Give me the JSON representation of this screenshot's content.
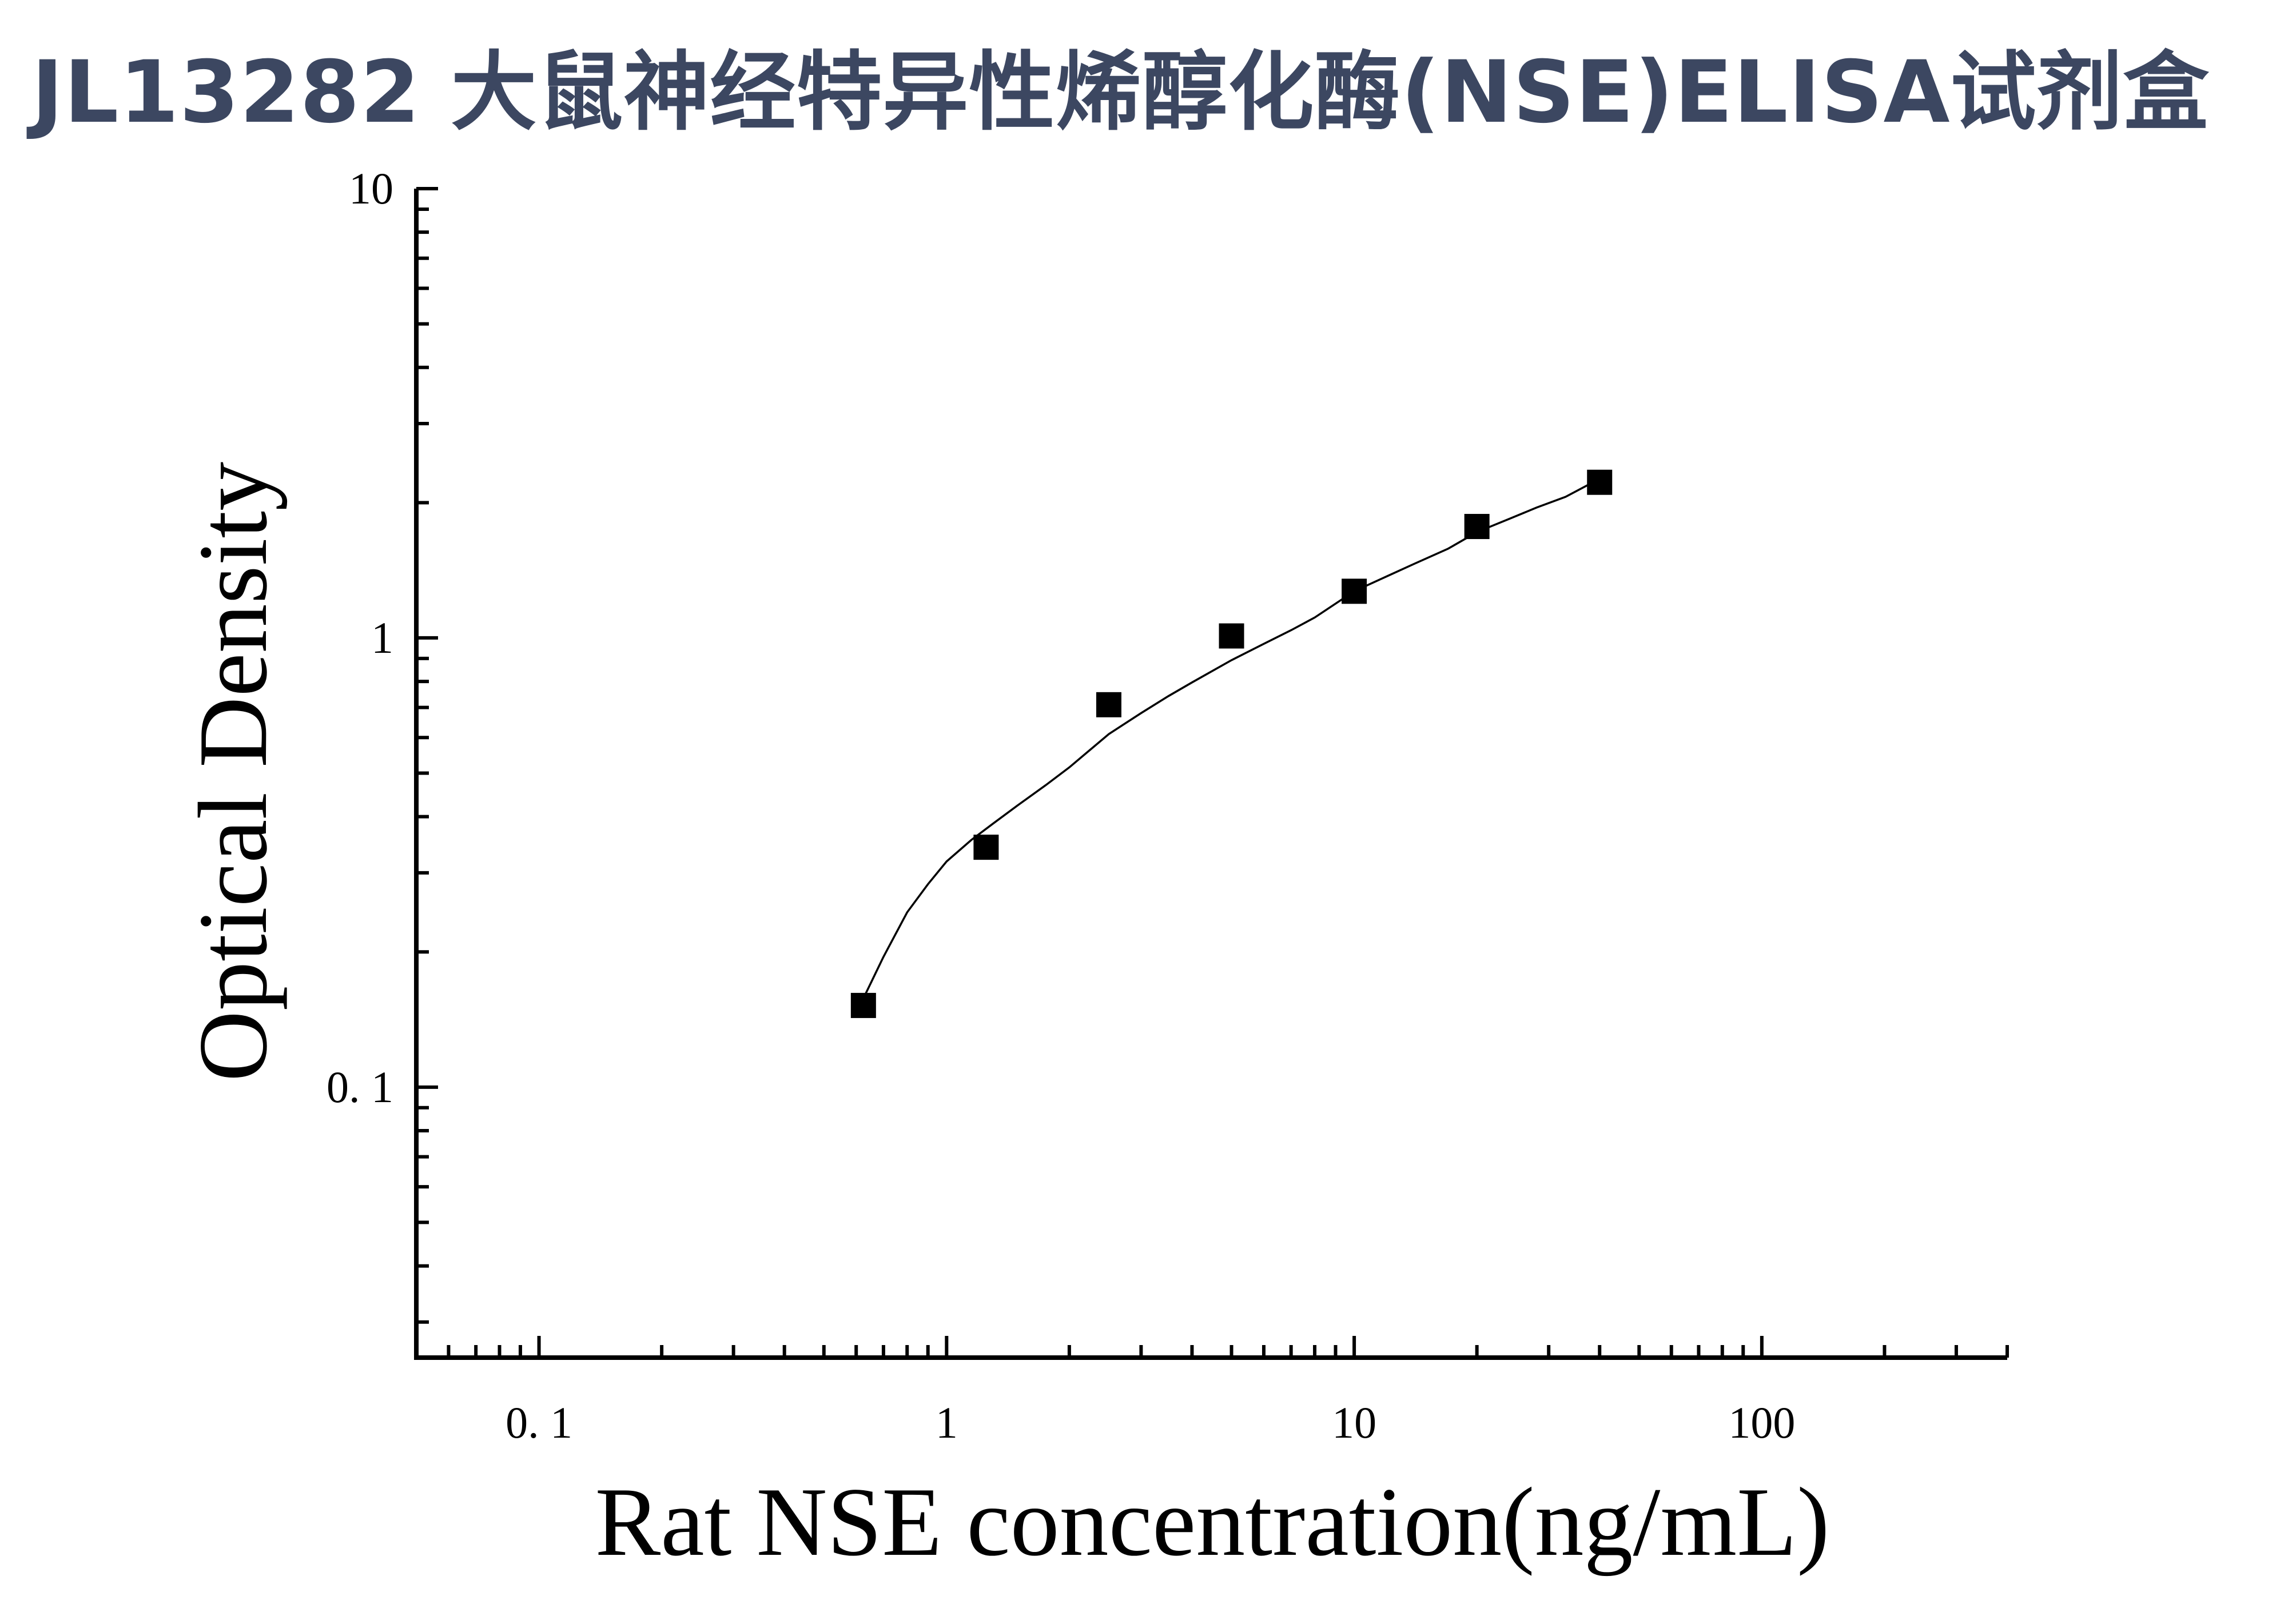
{
  "title": "JL13282 大鼠神经特异性烯醇化酶(NSE)ELISA试剂盒",
  "colors": {
    "title": "#3c4761",
    "axis": "#000000",
    "marker": "#000000"
  },
  "chart_data": {
    "type": "scatter",
    "title": "JL13282 大鼠神经特异性烯醇化酶(NSE)ELISA试剂盒",
    "xlabel": "Rat NSE concentration(ng/mL)",
    "ylabel": "Optical Density",
    "xscale": "log",
    "yscale": "log",
    "xlim": [
      0.05,
      400
    ],
    "ylim": [
      0.025,
      10
    ],
    "xticks": [
      0.1,
      1,
      10,
      100
    ],
    "xtick_labels": [
      "0. 1",
      "1",
      "10",
      "100"
    ],
    "yticks": [
      0.1,
      1,
      10
    ],
    "ytick_labels": [
      "0. 1",
      "1",
      "10"
    ],
    "grid": false,
    "legend": "none",
    "series": [
      {
        "marker": "square",
        "x": [
          0.625,
          1.25,
          2.5,
          5,
          10,
          20,
          40
        ],
        "y": [
          0.152,
          0.342,
          0.71,
          1.01,
          1.27,
          1.77,
          2.22
        ]
      }
    ],
    "fit_curve": {
      "x": [
        0.63,
        0.7,
        0.8,
        0.9,
        1.0,
        1.15,
        1.3,
        1.5,
        1.75,
        2.0,
        2.5,
        3.0,
        3.5,
        4.0,
        5.0,
        6.0,
        7.0,
        8.0,
        10,
        12,
        14,
        17,
        20,
        24,
        28,
        33,
        40
      ],
      "y": [
        0.16,
        0.195,
        0.245,
        0.283,
        0.318,
        0.355,
        0.386,
        0.425,
        0.47,
        0.515,
        0.611,
        0.68,
        0.742,
        0.796,
        0.892,
        0.97,
        1.04,
        1.11,
        1.27,
        1.37,
        1.46,
        1.58,
        1.72,
        1.84,
        1.95,
        2.06,
        2.26
      ]
    }
  }
}
